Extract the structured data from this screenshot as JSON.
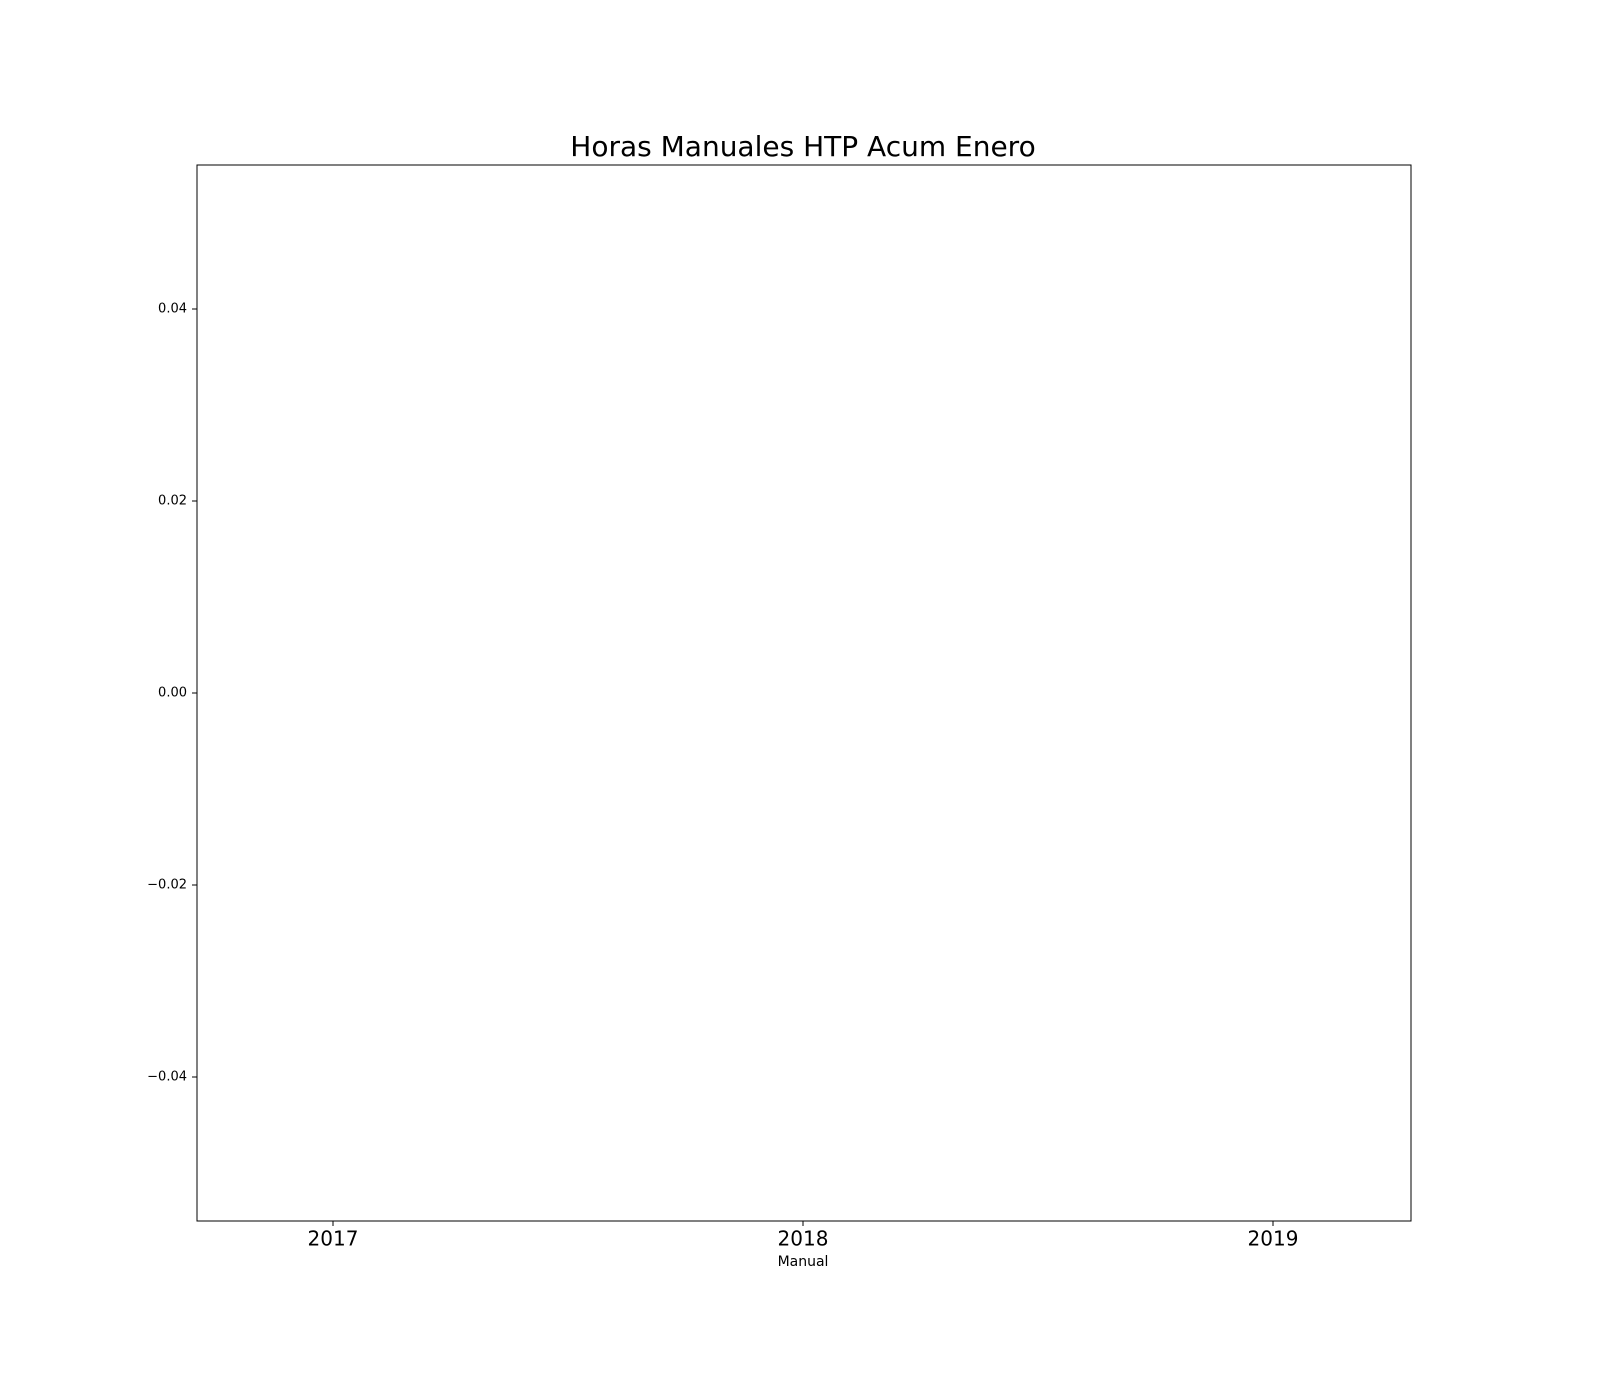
{
  "chart_data": {
    "type": "bar",
    "title": "Horas Manuales HTP Acum Enero",
    "xlabel": "Manual",
    "categories": [
      "2017",
      "2018",
      "2019"
    ],
    "values": [
      0,
      0,
      0
    ],
    "color": "#1f77b4",
    "ylim": [
      -0.055,
      0.055
    ],
    "yticks": [
      {
        "value": -0.04,
        "label": "−0.04"
      },
      {
        "value": -0.02,
        "label": "−0.02"
      },
      {
        "value": 0,
        "label": "0.00"
      },
      0.02,
      0.04
    ],
    "grid": false
  }
}
